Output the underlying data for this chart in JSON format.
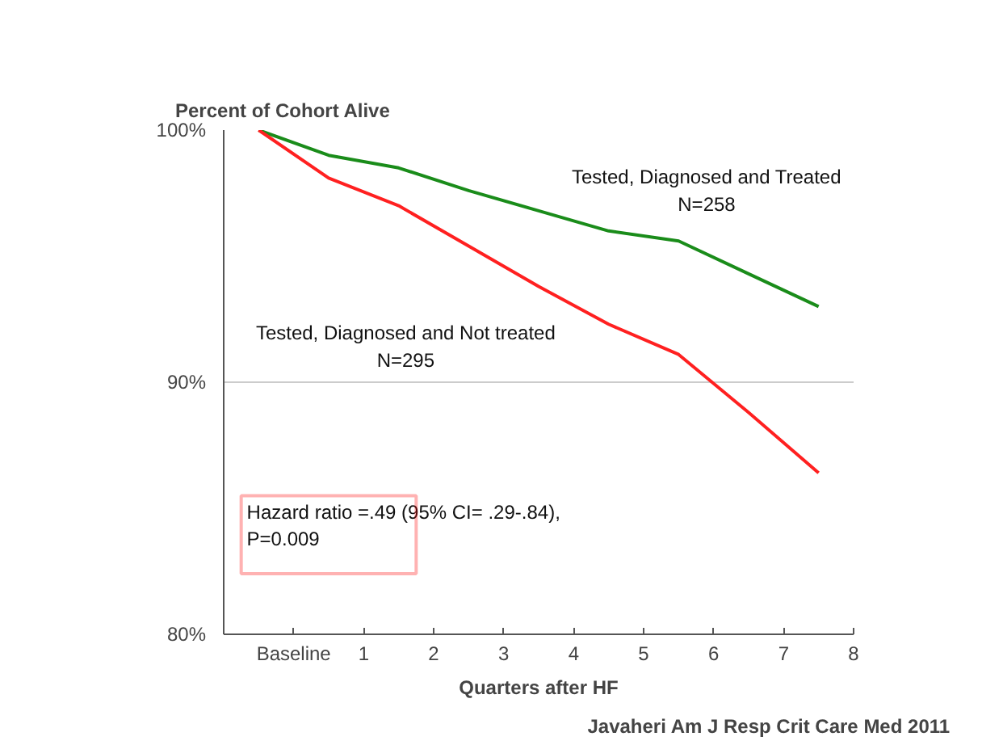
{
  "chart_data": {
    "type": "line",
    "title": "Percent of Cohort Alive",
    "xlabel": "Quarters after HF",
    "x": [
      -0.5,
      0.5,
      1.5,
      2.5,
      3.5,
      4.5,
      5.5,
      6.5,
      7.5
    ],
    "series": [
      {
        "name": "Tested, Diagnosed and Treated\nN=258",
        "color": "#1a8c1a",
        "values": [
          100,
          99.0,
          98.5,
          97.6,
          96.8,
          96.0,
          95.6,
          94.3,
          93.0
        ]
      },
      {
        "name": "Tested, Diagnosed and Not treated\nN=295",
        "color": "#ff2020",
        "values": [
          100,
          98.1,
          97.0,
          95.4,
          93.8,
          92.3,
          91.1,
          88.8,
          86.4
        ]
      }
    ],
    "xlim": [
      -1,
      8
    ],
    "xticks": [
      {
        "value": -1,
        "label": null
      },
      {
        "value": 0,
        "label": "Baseline"
      },
      1,
      2,
      3,
      4,
      5,
      6,
      7,
      8
    ],
    "ylim": [
      80,
      100
    ],
    "yticks": [
      {
        "value": 80,
        "label": "80%"
      },
      {
        "value": 90,
        "label": "90%"
      },
      {
        "value": 100,
        "label": "100%"
      }
    ],
    "grid": "y",
    "marker": "none",
    "line_style": "solid",
    "annotations": [
      "Hazard ratio =.49 (95% CI= .29-.84),\nP=0.009",
      "Javaheri Am J Resp Crit Care Med 2011"
    ]
  }
}
